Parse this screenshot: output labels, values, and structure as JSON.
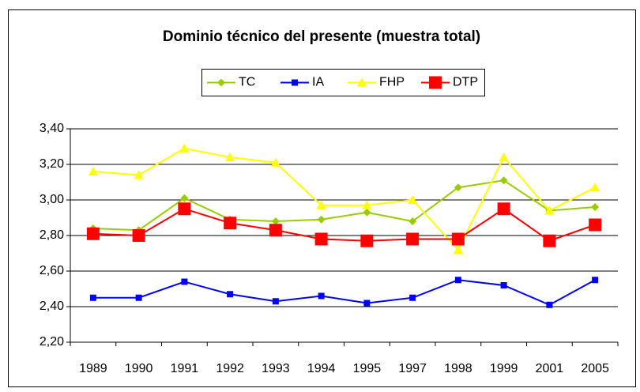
{
  "chart_data": {
    "type": "line",
    "title": "Dominio técnico del presente (muestra total)",
    "categories": [
      "1989",
      "1990",
      "1991",
      "1992",
      "1993",
      "1994",
      "1995",
      "1997",
      "1998",
      "1999",
      "2001",
      "2005"
    ],
    "series": [
      {
        "name": "TC",
        "color": "#99cc00",
        "marker": "diamond",
        "values": [
          2.84,
          2.83,
          3.01,
          2.89,
          2.88,
          2.89,
          2.93,
          2.88,
          3.07,
          3.11,
          2.94,
          2.96
        ]
      },
      {
        "name": "IA",
        "color": "#0000ff",
        "marker": "square",
        "values": [
          2.45,
          2.45,
          2.54,
          2.47,
          2.43,
          2.46,
          2.42,
          2.45,
          2.55,
          2.52,
          2.41,
          2.55
        ]
      },
      {
        "name": "FHP",
        "color": "#ffff00",
        "marker": "triangle",
        "values": [
          3.16,
          3.14,
          3.29,
          3.24,
          3.21,
          2.97,
          2.97,
          3.0,
          2.72,
          3.24,
          2.94,
          3.07
        ]
      },
      {
        "name": "DTP",
        "color": "#ff0000",
        "marker": "big-square",
        "values": [
          2.81,
          2.8,
          2.95,
          2.87,
          2.83,
          2.78,
          2.77,
          2.78,
          2.78,
          2.95,
          2.77,
          2.86
        ]
      }
    ],
    "ylim": [
      2.2,
      3.4
    ],
    "yticks": [
      {
        "value": 2.2,
        "label": "2,20"
      },
      {
        "value": 2.4,
        "label": "2,40"
      },
      {
        "value": 2.6,
        "label": "2,60"
      },
      {
        "value": 2.8,
        "label": "2,80"
      },
      {
        "value": 3.0,
        "label": "3,00"
      },
      {
        "value": 3.2,
        "label": "3,20"
      },
      {
        "value": 3.4,
        "label": "3,40"
      }
    ],
    "grid": true,
    "legend": "top"
  }
}
